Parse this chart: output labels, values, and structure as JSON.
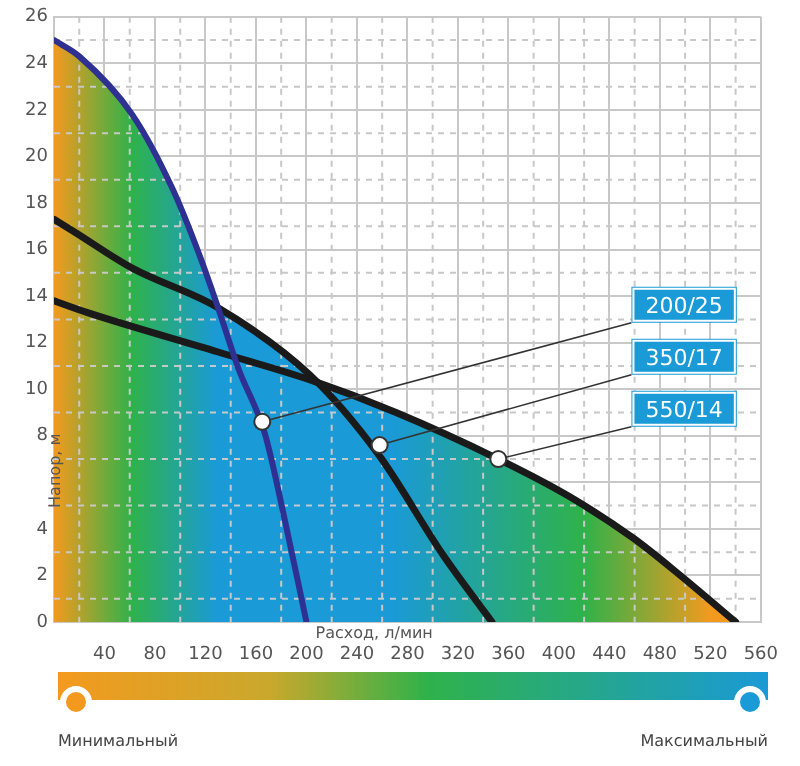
{
  "chart_data": {
    "type": "area",
    "xlabel": "Расход, л/мин",
    "ylabel": "Напор, м",
    "xlim": [
      0,
      560
    ],
    "ylim": [
      0,
      26
    ],
    "xticks": [
      {
        "value": 0,
        "label": null
      },
      40,
      80,
      120,
      160,
      200,
      240,
      280,
      320,
      360,
      400,
      440,
      480,
      520,
      560
    ],
    "yticks": [
      0,
      2,
      4,
      {
        "value": 6,
        "label": null
      },
      8,
      10,
      12,
      14,
      16,
      18,
      20,
      22,
      24,
      26
    ],
    "grid": true,
    "marker": "none",
    "line_style": "solid",
    "series": [
      {
        "color": "#2e3192",
        "x": [
          0,
          20,
          62,
          94,
          115,
          130,
          146,
          167,
          182,
          200
        ],
        "values": [
          25,
          24.3,
          21.8,
          18.6,
          15.8,
          13.5,
          10.9,
          8.1,
          4.6,
          0
        ]
      },
      {
        "color": "#1a1a1a",
        "x": [
          0,
          15,
          62,
          130,
          203,
          257,
          308,
          347
        ],
        "values": [
          17.3,
          16.8,
          15.2,
          13.5,
          10.6,
          7.2,
          2.9,
          0
        ]
      },
      {
        "color": "#1a1a1a",
        "x": [
          0,
          26,
          130,
          203,
          271,
          352,
          408,
          459,
          494,
          540
        ],
        "values": [
          13.8,
          13.3,
          11.6,
          10.4,
          9.0,
          7.0,
          5.4,
          3.6,
          2.1,
          0
        ]
      }
    ],
    "annotations": [
      {
        "text": "200/25",
        "x": 165,
        "y": 8.6
      },
      {
        "text": "350/17",
        "x": 258,
        "y": 7.6
      },
      {
        "text": "550/14",
        "x": 352,
        "y": 7.0
      },
      "Минимальный",
      "Максимальный"
    ]
  }
}
